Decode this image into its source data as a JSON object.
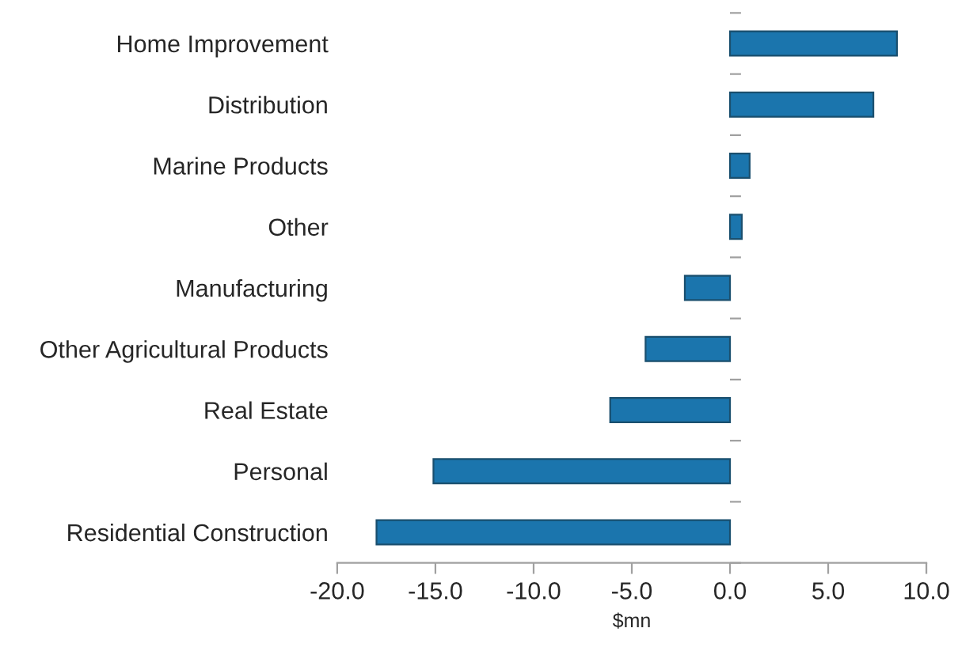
{
  "chart_data": {
    "type": "bar",
    "orientation": "horizontal",
    "xlabel": "$mn",
    "categories": [
      "Home Improvement",
      "Distribution",
      "Marine Products",
      "Other",
      "Manufacturing",
      "Other Agricultural Products",
      "Real Estate",
      "Personal",
      "Residential Construction"
    ],
    "values": [
      8.5,
      7.3,
      1.0,
      0.6,
      -2.3,
      -4.3,
      -6.1,
      -15.1,
      -18.0
    ],
    "color": "#1b75ad",
    "xlim": [
      -20,
      10
    ],
    "xticks": [
      {
        "value": -20,
        "label": "-20.0"
      },
      {
        "value": -15,
        "label": "-15.0"
      },
      {
        "value": -10,
        "label": "-10.0"
      },
      {
        "value": -5,
        "label": "-5.0"
      },
      {
        "value": 0,
        "label": "0.0"
      },
      {
        "value": 5,
        "label": "5.0"
      },
      {
        "value": 10,
        "label": "10.0"
      }
    ],
    "grid": false,
    "legend": false
  }
}
